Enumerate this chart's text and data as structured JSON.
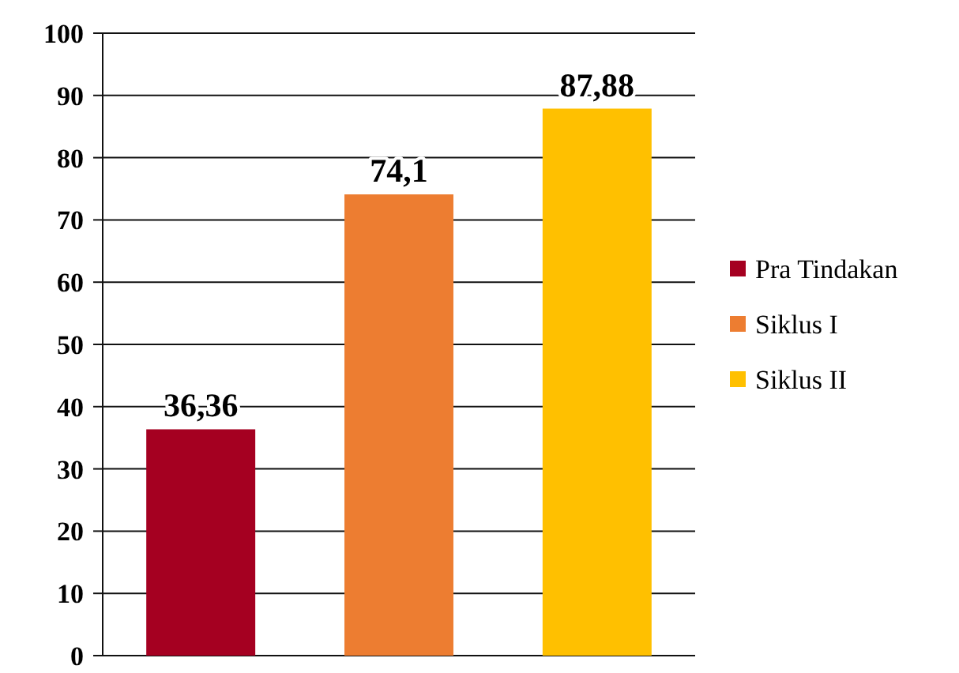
{
  "chart_data": {
    "type": "bar",
    "categories": [
      null
    ],
    "ylim": [
      0,
      100
    ],
    "yticks": [
      0,
      10,
      20,
      30,
      40,
      50,
      60,
      70,
      80,
      90,
      100
    ],
    "grid": "y",
    "legend": "right",
    "series": [
      {
        "name": "Pra Tindakan",
        "color": "#a50021",
        "values": [
          36.36
        ],
        "value_labels": [
          "36,36"
        ]
      },
      {
        "name": "Siklus I",
        "color": "#ed7d31",
        "values": [
          74.1
        ],
        "value_labels": [
          "74,1"
        ]
      },
      {
        "name": "Siklus II",
        "color": "#ffc000",
        "values": [
          87.88
        ],
        "value_labels": [
          "87,88"
        ]
      }
    ]
  }
}
